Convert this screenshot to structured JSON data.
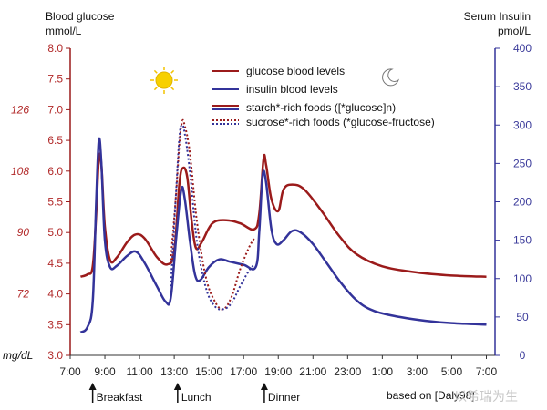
{
  "chart_data": {
    "type": "line",
    "title": "",
    "left_axis": {
      "title_line1": "Blood glucose",
      "title_line2": "mmol/L",
      "ylim": [
        3.0,
        8.0
      ],
      "ticks": [
        "3.0",
        "3.5",
        "4.0",
        "4.5",
        "5.0",
        "5.5",
        "6.0",
        "6.5",
        "7.0",
        "7.5",
        "8.0"
      ]
    },
    "mgdl_axis": {
      "unit_label": "mg/dL",
      "ticks": [
        {
          "label": "72",
          "mmol": 4.0
        },
        {
          "label": "90",
          "mmol": 5.0
        },
        {
          "label": "108",
          "mmol": 6.0
        },
        {
          "label": "126",
          "mmol": 7.0
        }
      ]
    },
    "right_axis": {
      "title_line1": "Serum Insulin",
      "title_line2": "pmol/L",
      "ylim": [
        0,
        400
      ],
      "ticks": [
        "0",
        "50",
        "100",
        "150",
        "200",
        "250",
        "300",
        "350",
        "400"
      ]
    },
    "x_axis": {
      "start_hour": 7,
      "end_hour": 31.5,
      "ticks": [
        "7:00",
        "9:00",
        "11:00",
        "13:00",
        "15:00",
        "17:00",
        "19:00",
        "21:00",
        "23:00",
        "1:00",
        "3:00",
        "5:00",
        "7:00"
      ]
    },
    "legend": [
      {
        "label": "glucose blood levels",
        "color": "#9b1b1b",
        "style": "solid"
      },
      {
        "label": "insulin blood levels",
        "color": "#33339a",
        "style": "solid"
      },
      {
        "label": "starch*-rich foods ([*glucose]n)",
        "color": "#9b1b1b",
        "color2": "#33339a",
        "style": "solid"
      },
      {
        "label": "sucrose*-rich foods (*glucose-fructose)",
        "color": "#9b1b1b",
        "color2": "#33339a",
        "style": "dotted"
      }
    ],
    "series": [
      {
        "name": "glucose (starch)",
        "axis": "left",
        "color": "#9b1b1b",
        "style": "solid",
        "points": [
          [
            7.6,
            4.28
          ],
          [
            8.0,
            4.32
          ],
          [
            8.3,
            4.45
          ],
          [
            8.5,
            5.3
          ],
          [
            8.65,
            6.2
          ],
          [
            8.8,
            6.1
          ],
          [
            9.0,
            5.1
          ],
          [
            9.3,
            4.55
          ],
          [
            9.7,
            4.6
          ],
          [
            10.3,
            4.85
          ],
          [
            10.8,
            4.97
          ],
          [
            11.3,
            4.9
          ],
          [
            12.0,
            4.6
          ],
          [
            12.6,
            4.48
          ],
          [
            13.0,
            4.7
          ],
          [
            13.3,
            5.8
          ],
          [
            13.5,
            6.05
          ],
          [
            13.75,
            5.9
          ],
          [
            14.0,
            5.2
          ],
          [
            14.25,
            4.75
          ],
          [
            14.6,
            4.85
          ],
          [
            15.2,
            5.15
          ],
          [
            16.0,
            5.2
          ],
          [
            16.8,
            5.15
          ],
          [
            17.6,
            5.05
          ],
          [
            17.9,
            5.3
          ],
          [
            18.15,
            6.2
          ],
          [
            18.3,
            6.1
          ],
          [
            18.6,
            5.55
          ],
          [
            19.0,
            5.35
          ],
          [
            19.3,
            5.7
          ],
          [
            19.8,
            5.78
          ],
          [
            20.5,
            5.7
          ],
          [
            21.5,
            5.35
          ],
          [
            22.5,
            4.95
          ],
          [
            23.5,
            4.65
          ],
          [
            25.0,
            4.45
          ],
          [
            27.0,
            4.35
          ],
          [
            29.0,
            4.3
          ],
          [
            31.0,
            4.28
          ]
        ]
      },
      {
        "name": "insulin (starch)",
        "axis": "right",
        "color": "#33339a",
        "style": "solid",
        "points": [
          [
            7.6,
            30
          ],
          [
            8.0,
            37
          ],
          [
            8.3,
            70
          ],
          [
            8.5,
            200
          ],
          [
            8.65,
            280
          ],
          [
            8.8,
            250
          ],
          [
            9.0,
            150
          ],
          [
            9.3,
            115
          ],
          [
            9.7,
            117
          ],
          [
            10.3,
            130
          ],
          [
            10.8,
            135
          ],
          [
            11.3,
            120
          ],
          [
            12.0,
            90
          ],
          [
            12.5,
            70
          ],
          [
            12.8,
            75
          ],
          [
            13.1,
            150
          ],
          [
            13.4,
            215
          ],
          [
            13.6,
            205
          ],
          [
            13.9,
            150
          ],
          [
            14.2,
            105
          ],
          [
            14.5,
            98
          ],
          [
            15.0,
            115
          ],
          [
            15.6,
            125
          ],
          [
            16.2,
            122
          ],
          [
            17.0,
            118
          ],
          [
            17.7,
            115
          ],
          [
            17.9,
            160
          ],
          [
            18.1,
            235
          ],
          [
            18.3,
            225
          ],
          [
            18.6,
            165
          ],
          [
            18.9,
            145
          ],
          [
            19.3,
            150
          ],
          [
            19.8,
            162
          ],
          [
            20.3,
            160
          ],
          [
            21.0,
            145
          ],
          [
            21.8,
            120
          ],
          [
            22.6,
            95
          ],
          [
            23.5,
            72
          ],
          [
            24.5,
            58
          ],
          [
            26.0,
            50
          ],
          [
            27.5,
            45
          ],
          [
            29.0,
            42
          ],
          [
            31.0,
            40
          ]
        ]
      },
      {
        "name": "glucose (sucrose)",
        "axis": "left",
        "color": "#9b1b1b",
        "style": "dotted",
        "points": [
          [
            12.8,
            4.55
          ],
          [
            13.1,
            5.6
          ],
          [
            13.3,
            6.45
          ],
          [
            13.45,
            6.8
          ],
          [
            13.6,
            6.75
          ],
          [
            13.9,
            6.3
          ],
          [
            14.3,
            5.2
          ],
          [
            14.8,
            4.3
          ],
          [
            15.3,
            3.9
          ],
          [
            15.8,
            3.75
          ],
          [
            16.3,
            3.95
          ],
          [
            16.8,
            4.4
          ],
          [
            17.3,
            4.75
          ],
          [
            17.6,
            4.9
          ]
        ]
      },
      {
        "name": "insulin (sucrose)",
        "axis": "right",
        "color": "#33339a",
        "style": "dotted",
        "points": [
          [
            12.8,
            90
          ],
          [
            13.1,
            210
          ],
          [
            13.3,
            285
          ],
          [
            13.45,
            300
          ],
          [
            13.6,
            290
          ],
          [
            13.9,
            240
          ],
          [
            14.3,
            150
          ],
          [
            14.8,
            90
          ],
          [
            15.3,
            65
          ],
          [
            15.8,
            60
          ],
          [
            16.3,
            68
          ],
          [
            16.8,
            90
          ],
          [
            17.3,
            110
          ],
          [
            17.6,
            118
          ]
        ]
      }
    ],
    "annotations": [
      {
        "label": "Breakfast",
        "hour": 8.4
      },
      {
        "label": "Lunch",
        "hour": 13.3
      },
      {
        "label": "Dinner",
        "hour": 18.3
      }
    ],
    "source": "based on [Daly98]",
    "watermark": "以希瑞为生",
    "sun_icon": "sun-icon",
    "moon_icon": "crescent-moon-icon"
  }
}
